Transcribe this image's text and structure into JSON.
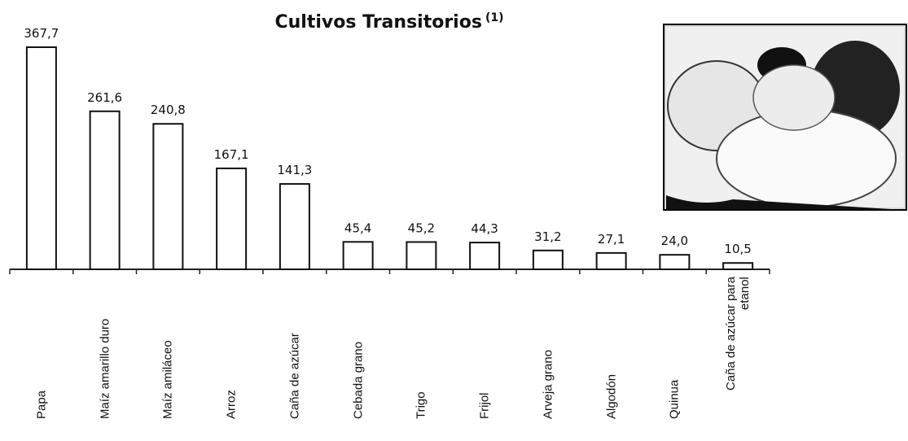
{
  "chart_data": {
    "type": "bar",
    "title": "Cultivos Transitorios",
    "title_superscript": "(1)",
    "categories": [
      "Papa",
      "Maíz amarillo duro",
      "Maíz amiláceo",
      "Arroz",
      "Caña de azúcar",
      "Cebada grano",
      "Trigo",
      "Frijol",
      "Arveja grano",
      "Algodón",
      "Quinua",
      "Caña de azúcar para etanol"
    ],
    "values": [
      367.7,
      261.6,
      240.8,
      167.1,
      141.3,
      45.4,
      45.2,
      44.3,
      31.2,
      27.1,
      24.0,
      10.5
    ],
    "value_labels": [
      "367,7",
      "261,6",
      "240,8",
      "167,1",
      "141,3",
      "45,4",
      "45,2",
      "44,3",
      "31,2",
      "27,1",
      "24,0",
      "10,5"
    ],
    "color": "#ffffff"
  }
}
